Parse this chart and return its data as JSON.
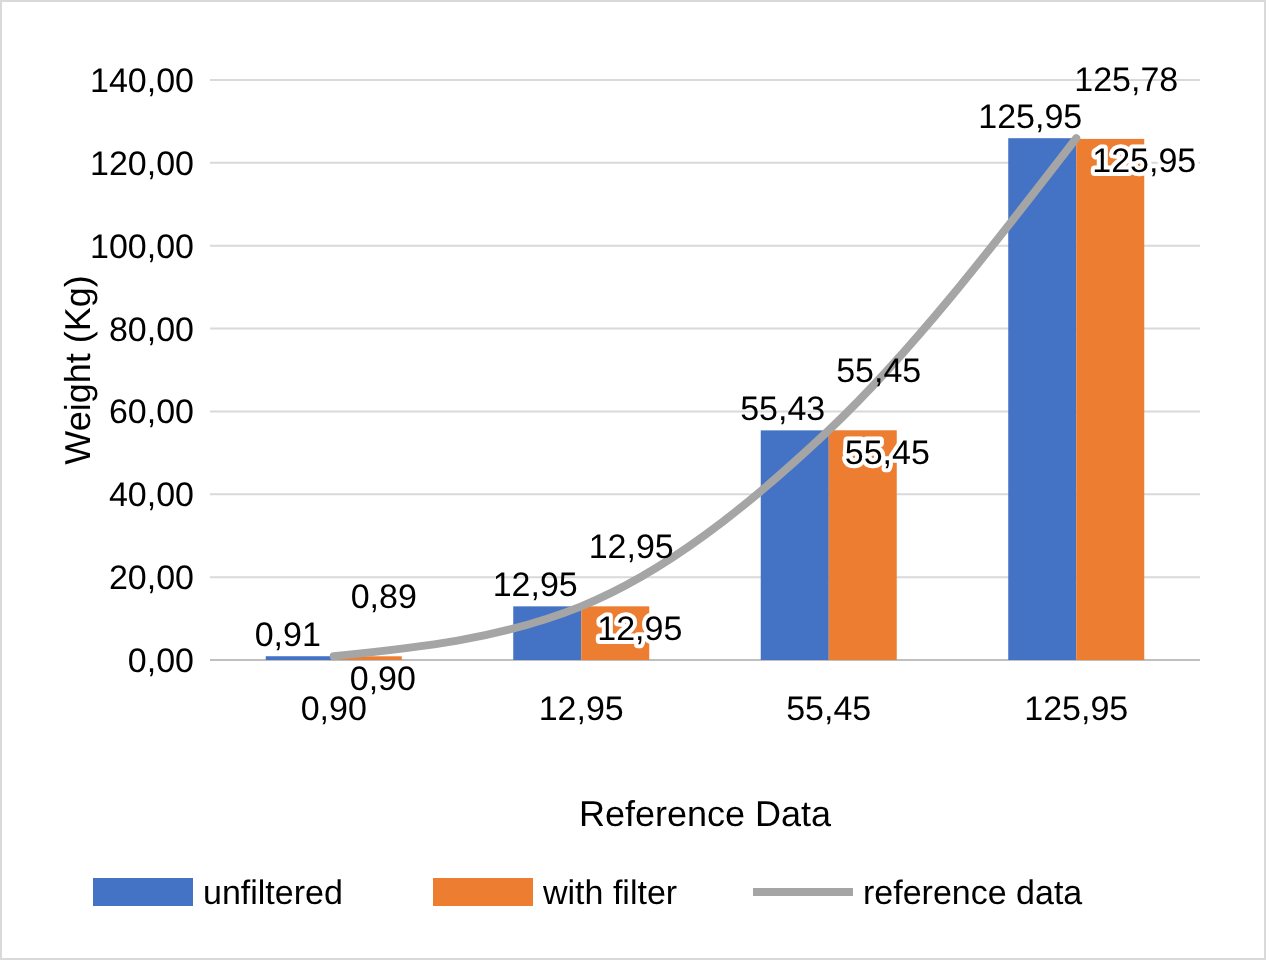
{
  "chart_data": {
    "type": "bar",
    "xlabel": "Reference Data",
    "ylabel": "Weight (Kg)",
    "categories": [
      "0,90",
      "12,95",
      "55,45",
      "125,95"
    ],
    "series": [
      {
        "name": "unfiltered",
        "color": "#4472c4",
        "values": [
          0.91,
          12.95,
          55.43,
          125.95
        ],
        "value_labels": [
          "0,91",
          "12,95",
          "55,43",
          "125,95"
        ]
      },
      {
        "name": "with filter",
        "color": "#ed7d31",
        "values": [
          0.89,
          12.95,
          55.45,
          125.78
        ],
        "value_labels": [
          "0,89",
          "12,95",
          "55,45",
          "125,78"
        ]
      },
      {
        "name": "reference data",
        "type": "line",
        "color": "#a5a5a5",
        "values": [
          0.9,
          12.95,
          55.45,
          125.95
        ],
        "value_labels": [
          "0,90",
          "12,95",
          "55,45",
          "125,95"
        ]
      }
    ],
    "ylim": [
      0,
      140
    ],
    "yticks": [
      {
        "value": 0,
        "label": "0,00"
      },
      {
        "value": 20,
        "label": "20,00"
      },
      {
        "value": 40,
        "label": "40,00"
      },
      {
        "value": 60,
        "label": "60,00"
      },
      {
        "value": 80,
        "label": "80,00"
      },
      {
        "value": 100,
        "label": "100,00"
      },
      {
        "value": 120,
        "label": "120,00"
      },
      {
        "value": 140,
        "label": "140,00"
      }
    ],
    "grid": "y",
    "legend": "bottom"
  }
}
